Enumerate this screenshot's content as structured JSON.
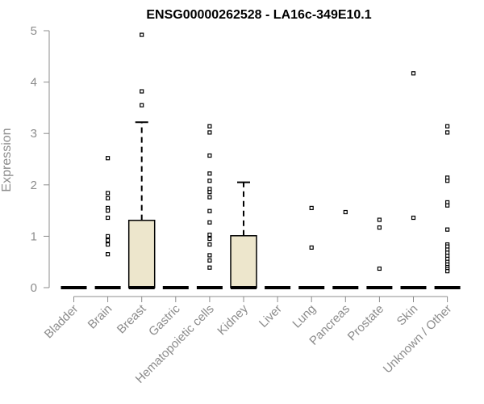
{
  "chart_data": {
    "type": "box",
    "title": "ENSG00000262528 - LA16c-349E10.1",
    "xlabel": "",
    "ylabel": "Expression",
    "ylim": [
      0,
      5
    ],
    "yticks": [
      0,
      1,
      2,
      3,
      4,
      5
    ],
    "box_fill": "#ede6cc",
    "categories": [
      "Bladder",
      "Brain",
      "Breast",
      "Gastric",
      "Hematopoietic cells",
      "Kidney",
      "Liver",
      "Lung",
      "Pancreas",
      "Prostate",
      "Skin",
      "Unknown / Other"
    ],
    "boxes": [
      {
        "category": "Bladder",
        "q1": 0,
        "median": 0,
        "q3": 0,
        "whisker_high": 0,
        "outliers": []
      },
      {
        "category": "Brain",
        "q1": 0,
        "median": 0,
        "q3": 0,
        "whisker_high": 0,
        "outliers": [
          2.52,
          1.84,
          1.74,
          1.55,
          1.5,
          1.36,
          1.0,
          0.92,
          0.84,
          0.65
        ]
      },
      {
        "category": "Breast",
        "q1": 0,
        "median": 0,
        "q3": 1.31,
        "whisker_high": 3.22,
        "outliers": [
          4.92,
          3.82,
          3.55
        ]
      },
      {
        "category": "Gastric",
        "q1": 0,
        "median": 0,
        "q3": 0,
        "whisker_high": 0,
        "outliers": []
      },
      {
        "category": "Hematopoietic cells",
        "q1": 0,
        "median": 0,
        "q3": 0,
        "whisker_high": 0,
        "outliers": [
          3.14,
          3.02,
          2.57,
          2.22,
          2.08,
          1.92,
          1.86,
          1.76,
          1.49,
          1.27,
          1.03,
          0.95,
          0.84,
          0.63,
          0.53,
          0.39
        ]
      },
      {
        "category": "Kidney",
        "q1": 0,
        "median": 0,
        "q3": 1.01,
        "whisker_high": 2.05,
        "outliers": []
      },
      {
        "category": "Liver",
        "q1": 0,
        "median": 0,
        "q3": 0,
        "whisker_high": 0,
        "outliers": []
      },
      {
        "category": "Lung",
        "q1": 0,
        "median": 0,
        "q3": 0,
        "whisker_high": 0,
        "outliers": [
          1.55,
          0.78
        ]
      },
      {
        "category": "Pancreas",
        "q1": 0,
        "median": 0,
        "q3": 0,
        "whisker_high": 0,
        "outliers": [
          1.47
        ]
      },
      {
        "category": "Prostate",
        "q1": 0,
        "median": 0,
        "q3": 0,
        "whisker_high": 0,
        "outliers": [
          1.32,
          1.17,
          0.37
        ]
      },
      {
        "category": "Skin",
        "q1": 0,
        "median": 0,
        "q3": 0,
        "whisker_high": 0,
        "outliers": [
          4.17,
          1.36
        ]
      },
      {
        "category": "Unknown / Other",
        "q1": 0,
        "median": 0,
        "q3": 0,
        "whisker_high": 0,
        "outliers": [
          3.14,
          3.02,
          2.14,
          2.08,
          1.66,
          1.6,
          1.13,
          0.84,
          0.8,
          0.74,
          0.68,
          0.62,
          0.56,
          0.5,
          0.45,
          0.4,
          0.36,
          0.32
        ]
      }
    ]
  }
}
